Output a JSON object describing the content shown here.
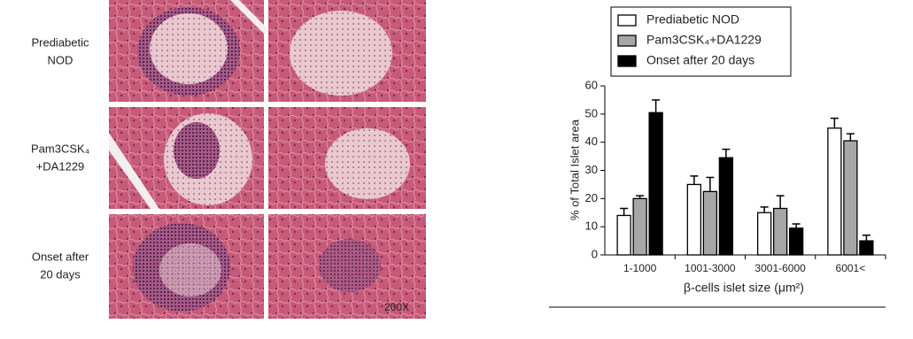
{
  "panel": {
    "rows": [
      {
        "label": [
          "Prediabetic",
          "NOD"
        ]
      },
      {
        "label": [
          "Pam3CSK₄",
          "+DA1229"
        ]
      },
      {
        "label": [
          "Onset after",
          "20 days"
        ]
      }
    ],
    "magnification": "200X"
  },
  "chart_data": {
    "type": "bar",
    "y_label": "% of Total Islet area",
    "x_label": "β-cells islet size (μm²)",
    "categories": [
      "1-1000",
      "1001-3000",
      "3001-6000",
      "6001<"
    ],
    "series": [
      {
        "name": "Prediabetic NOD",
        "color": "#ffffff",
        "values": [
          14,
          25,
          15,
          45
        ],
        "errors": [
          2.5,
          3,
          2,
          3.5
        ]
      },
      {
        "name": "Pam3CSK₄+DA1229",
        "color": "#a6a6a6",
        "values": [
          20,
          22.5,
          16.5,
          40.5
        ],
        "errors": [
          1,
          5,
          4.5,
          2.5
        ]
      },
      {
        "name": "Onset after 20 days",
        "color": "#000000",
        "values": [
          50.5,
          34.5,
          9.5,
          5
        ],
        "errors": [
          4.5,
          3,
          1.5,
          2
        ]
      }
    ],
    "ylim": [
      0,
      60
    ],
    "yticks": [
      0,
      10,
      20,
      30,
      40,
      50,
      60
    ],
    "grid": false,
    "legend": "top"
  }
}
